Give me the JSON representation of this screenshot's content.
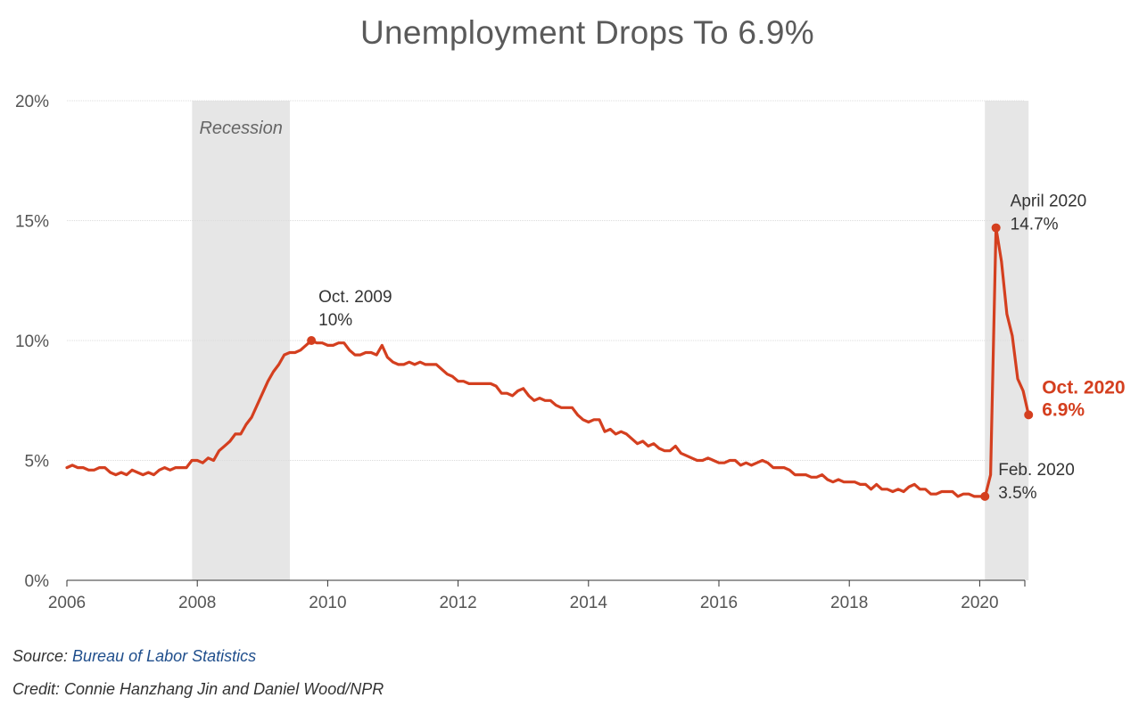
{
  "chart_data": {
    "type": "line",
    "title": "Unemployment Drops To 6.9%",
    "xlabel": "",
    "ylabel": "",
    "x_start_year": 2006,
    "xlim": [
      2006,
      2020.83
    ],
    "ylim": [
      0,
      20
    ],
    "x_ticks": [
      2006,
      2008,
      2010,
      2012,
      2014,
      2016,
      2018,
      2020
    ],
    "x_tick_labels": [
      "2006",
      "2008",
      "2010",
      "2012",
      "2014",
      "2016",
      "2018",
      "2020"
    ],
    "y_ticks": [
      0,
      5,
      10,
      15,
      20
    ],
    "y_tick_labels": [
      "0%",
      "5%",
      "10%",
      "15%",
      "20%"
    ],
    "grid": true,
    "color": "#d43f1f",
    "recessions": [
      {
        "start": 2007.92,
        "end": 2009.42,
        "label": "Recession"
      },
      {
        "start": 2020.08,
        "end": 2020.75,
        "label": ""
      }
    ],
    "series": [
      {
        "name": "",
        "values": [
          4.7,
          4.8,
          4.7,
          4.7,
          4.6,
          4.6,
          4.7,
          4.7,
          4.5,
          4.4,
          4.5,
          4.4,
          4.6,
          4.5,
          4.4,
          4.5,
          4.4,
          4.6,
          4.7,
          4.6,
          4.7,
          4.7,
          4.7,
          5.0,
          5.0,
          4.9,
          5.1,
          5.0,
          5.4,
          5.6,
          5.8,
          6.1,
          6.1,
          6.5,
          6.8,
          7.3,
          7.8,
          8.3,
          8.7,
          9.0,
          9.4,
          9.5,
          9.5,
          9.6,
          9.8,
          10.0,
          9.9,
          9.9,
          9.8,
          9.8,
          9.9,
          9.9,
          9.6,
          9.4,
          9.4,
          9.5,
          9.5,
          9.4,
          9.8,
          9.3,
          9.1,
          9.0,
          9.0,
          9.1,
          9.0,
          9.1,
          9.0,
          9.0,
          9.0,
          8.8,
          8.6,
          8.5,
          8.3,
          8.3,
          8.2,
          8.2,
          8.2,
          8.2,
          8.2,
          8.1,
          7.8,
          7.8,
          7.7,
          7.9,
          8.0,
          7.7,
          7.5,
          7.6,
          7.5,
          7.5,
          7.3,
          7.2,
          7.2,
          7.2,
          6.9,
          6.7,
          6.6,
          6.7,
          6.7,
          6.2,
          6.3,
          6.1,
          6.2,
          6.1,
          5.9,
          5.7,
          5.8,
          5.6,
          5.7,
          5.5,
          5.4,
          5.4,
          5.6,
          5.3,
          5.2,
          5.1,
          5.0,
          5.0,
          5.1,
          5.0,
          4.9,
          4.9,
          5.0,
          5.0,
          4.8,
          4.9,
          4.8,
          4.9,
          5.0,
          4.9,
          4.7,
          4.7,
          4.7,
          4.6,
          4.4,
          4.4,
          4.4,
          4.3,
          4.3,
          4.4,
          4.2,
          4.1,
          4.2,
          4.1,
          4.1,
          4.1,
          4.0,
          4.0,
          3.8,
          4.0,
          3.8,
          3.8,
          3.7,
          3.8,
          3.7,
          3.9,
          4.0,
          3.8,
          3.8,
          3.6,
          3.6,
          3.7,
          3.7,
          3.7,
          3.5,
          3.6,
          3.6,
          3.5,
          3.5,
          3.5,
          4.4,
          14.7,
          13.3,
          11.1,
          10.2,
          8.4,
          7.9,
          6.9
        ]
      }
    ],
    "annotations": [
      {
        "x": 2009.75,
        "y": 10.0,
        "lines": [
          "Oct. 2009",
          "10%"
        ]
      },
      {
        "x": 2020.25,
        "y": 14.7,
        "lines": [
          "April 2020",
          "14.7%"
        ]
      },
      {
        "x": 2020.08,
        "y": 3.5,
        "lines": [
          "Feb. 2020",
          "3.5%"
        ]
      },
      {
        "x": 2020.75,
        "y": 6.9,
        "lines": [
          "Oct. 2020",
          "6.9%"
        ],
        "highlight": true
      }
    ]
  },
  "footer": {
    "source_prefix": "Source: ",
    "source_link": "Bureau of Labor Statistics",
    "credit": "Credit: Connie Hanzhang Jin and Daniel Wood/NPR"
  }
}
